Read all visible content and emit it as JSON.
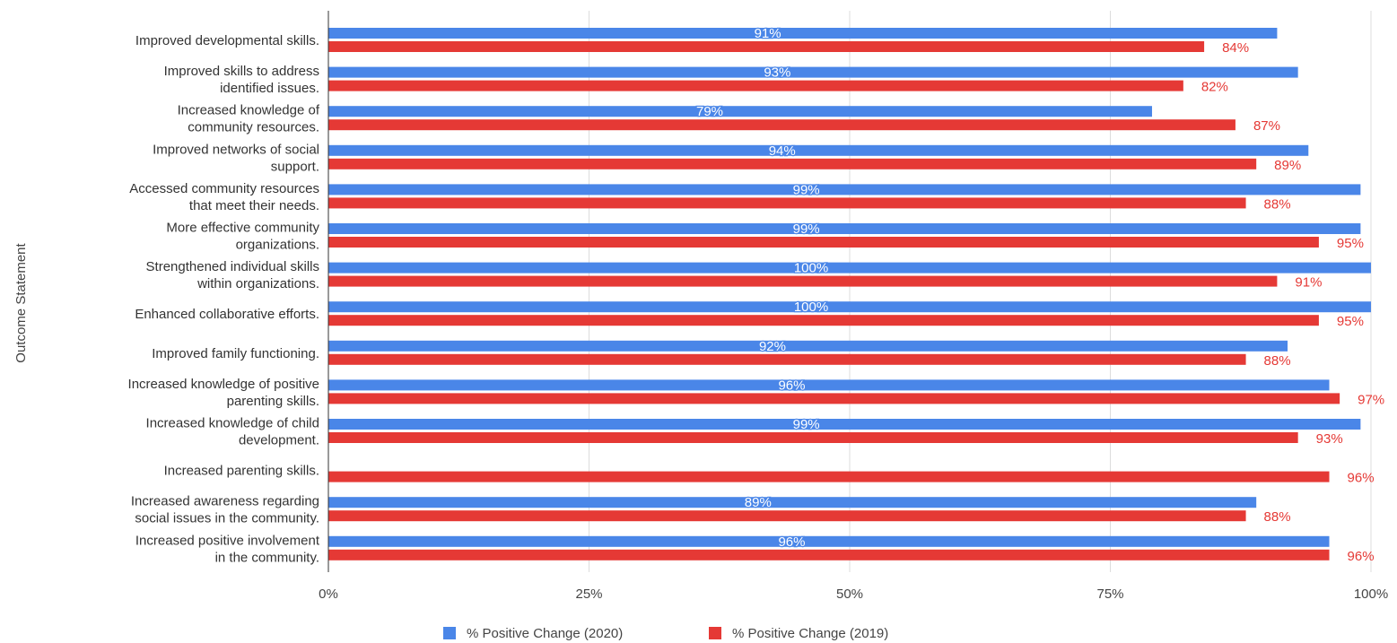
{
  "chart_data": {
    "type": "bar",
    "orientation": "horizontal",
    "categories": [
      [
        "Improved developmental skills."
      ],
      [
        "Improved skills to address",
        "identified issues."
      ],
      [
        "Increased knowledge of",
        "community resources."
      ],
      [
        "Improved networks of social",
        "support."
      ],
      [
        "Accessed community resources",
        "that meet their needs."
      ],
      [
        "More effective community",
        "organizations."
      ],
      [
        "Strengthened individual skills",
        "within organizations."
      ],
      [
        "Enhanced collaborative efforts."
      ],
      [
        "Improved family functioning."
      ],
      [
        "Increased knowledge of positive",
        "parenting skills."
      ],
      [
        "Increased knowledge of child",
        "development."
      ],
      [
        "Increased parenting skills."
      ],
      [
        "Increased awareness regarding",
        "social issues in the community."
      ],
      [
        "Increased positive involvement",
        "in the community."
      ]
    ],
    "series": [
      {
        "name": "% Positive Change (2020)",
        "color": "#4a86e8",
        "values": [
          91,
          93,
          79,
          94,
          99,
          99,
          100,
          100,
          92,
          96,
          99,
          null,
          89,
          96
        ],
        "labels": [
          "91%",
          "93%",
          "79%",
          "94%",
          "99%",
          "99%",
          "100%",
          "100%",
          "92%",
          "96%",
          "99%",
          "",
          "89%",
          "96%"
        ]
      },
      {
        "name": "% Positive Change (2019)",
        "color": "#e53935",
        "values": [
          84,
          82,
          87,
          89,
          88,
          95,
          91,
          95,
          88,
          97,
          93,
          96,
          88,
          96
        ],
        "labels": [
          "84%",
          "82%",
          "87%",
          "89%",
          "88%",
          "95%",
          "91%",
          "95%",
          "88%",
          "97%",
          "93%",
          "96%",
          "88%",
          "96%"
        ]
      }
    ],
    "xlim": [
      0,
      100
    ],
    "xticks": [
      0,
      25,
      50,
      75,
      100
    ],
    "xtick_labels": [
      "0%",
      "25%",
      "50%",
      "75%",
      "100%"
    ],
    "ylabel": "Outcome Statement",
    "xlabel": "",
    "title": "",
    "grid": true,
    "legend_position": "bottom"
  }
}
